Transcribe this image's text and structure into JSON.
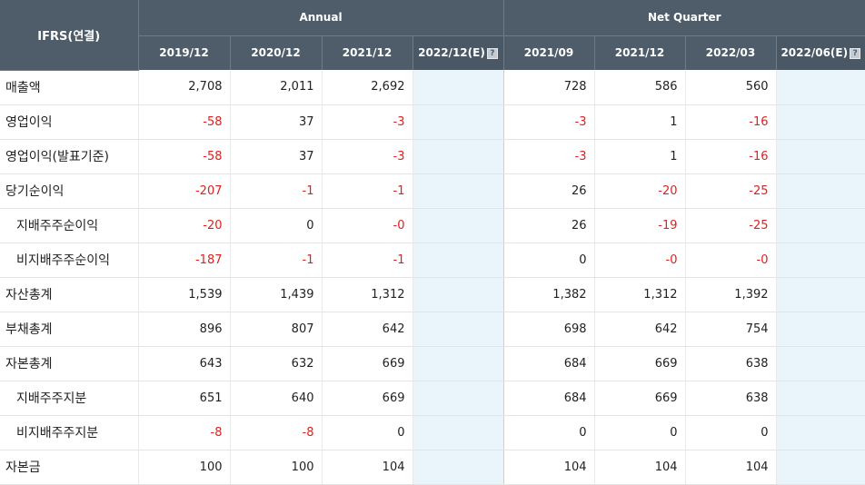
{
  "header": {
    "corner_label": "IFRS(연결)",
    "annual_label": "Annual",
    "quarter_label": "Net Quarter",
    "help_glyph": "?"
  },
  "columns": [
    {
      "label": "2019/12",
      "estimate": false
    },
    {
      "label": "2020/12",
      "estimate": false
    },
    {
      "label": "2021/12",
      "estimate": false
    },
    {
      "label": "2022/12(E)",
      "estimate": true
    },
    {
      "label": "2021/09",
      "estimate": false
    },
    {
      "label": "2021/12",
      "estimate": false
    },
    {
      "label": "2022/03",
      "estimate": false
    },
    {
      "label": "2022/06(E)",
      "estimate": true
    }
  ],
  "rows": [
    {
      "label": "매출액",
      "indent": false,
      "values": [
        "2,708",
        "2,011",
        "2,692",
        "",
        "728",
        "586",
        "560",
        ""
      ]
    },
    {
      "label": "영업이익",
      "indent": false,
      "values": [
        "-58",
        "37",
        "-3",
        "",
        "-3",
        "1",
        "-16",
        ""
      ]
    },
    {
      "label": "영업이익(발표기준)",
      "indent": false,
      "values": [
        "-58",
        "37",
        "-3",
        "",
        "-3",
        "1",
        "-16",
        ""
      ]
    },
    {
      "label": "당기순이익",
      "indent": false,
      "values": [
        "-207",
        "-1",
        "-1",
        "",
        "26",
        "-20",
        "-25",
        ""
      ]
    },
    {
      "label": "지배주주순이익",
      "indent": true,
      "values": [
        "-20",
        "0",
        "-0",
        "",
        "26",
        "-19",
        "-25",
        ""
      ]
    },
    {
      "label": "비지배주주순이익",
      "indent": true,
      "values": [
        "-187",
        "-1",
        "-1",
        "",
        "0",
        "-0",
        "-0",
        ""
      ]
    },
    {
      "label": "자산총계",
      "indent": false,
      "values": [
        "1,539",
        "1,439",
        "1,312",
        "",
        "1,382",
        "1,312",
        "1,392",
        ""
      ]
    },
    {
      "label": "부채총계",
      "indent": false,
      "values": [
        "896",
        "807",
        "642",
        "",
        "698",
        "642",
        "754",
        ""
      ]
    },
    {
      "label": "자본총계",
      "indent": false,
      "values": [
        "643",
        "632",
        "669",
        "",
        "684",
        "669",
        "638",
        ""
      ]
    },
    {
      "label": "지배주주지분",
      "indent": true,
      "values": [
        "651",
        "640",
        "669",
        "",
        "684",
        "669",
        "638",
        ""
      ]
    },
    {
      "label": "비지배주주지분",
      "indent": true,
      "values": [
        "-8",
        "-8",
        "0",
        "",
        "0",
        "0",
        "0",
        ""
      ]
    },
    {
      "label": "자본금",
      "indent": false,
      "values": [
        "100",
        "100",
        "104",
        "",
        "104",
        "104",
        "104",
        ""
      ]
    }
  ],
  "colors": {
    "header_bg": "#4f5d6b",
    "estimate_bg": "#eaf4fb",
    "negative": "#e02020"
  }
}
